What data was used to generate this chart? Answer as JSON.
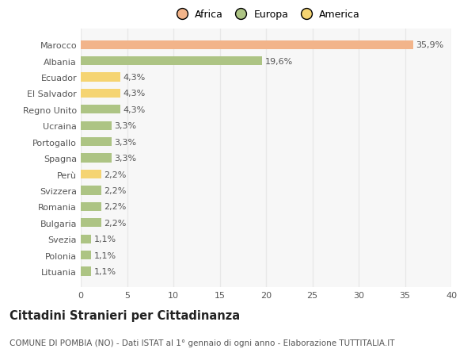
{
  "countries": [
    "Marocco",
    "Albania",
    "Ecuador",
    "El Salvador",
    "Regno Unito",
    "Ucraina",
    "Portogallo",
    "Spagna",
    "Perù",
    "Svizzera",
    "Romania",
    "Bulgaria",
    "Svezia",
    "Polonia",
    "Lituania"
  ],
  "values": [
    35.9,
    19.6,
    4.3,
    4.3,
    4.3,
    3.3,
    3.3,
    3.3,
    2.2,
    2.2,
    2.2,
    2.2,
    1.1,
    1.1,
    1.1
  ],
  "labels": [
    "35,9%",
    "19,6%",
    "4,3%",
    "4,3%",
    "4,3%",
    "3,3%",
    "3,3%",
    "3,3%",
    "2,2%",
    "2,2%",
    "2,2%",
    "2,2%",
    "1,1%",
    "1,1%",
    "1,1%"
  ],
  "colors": [
    "#f2b48a",
    "#adc484",
    "#f5d472",
    "#f5d472",
    "#adc484",
    "#adc484",
    "#adc484",
    "#adc484",
    "#f5d472",
    "#adc484",
    "#adc484",
    "#adc484",
    "#adc484",
    "#adc484",
    "#adc484"
  ],
  "legend_labels": [
    "Africa",
    "Europa",
    "America"
  ],
  "legend_colors": [
    "#f2b48a",
    "#adc484",
    "#f5d472"
  ],
  "title": "Cittadini Stranieri per Cittadinanza",
  "subtitle": "COMUNE DI POMBIA (NO) - Dati ISTAT al 1° gennaio di ogni anno - Elaborazione TUTTITALIA.IT",
  "xlim": [
    0,
    40
  ],
  "xticks": [
    0,
    5,
    10,
    15,
    20,
    25,
    30,
    35,
    40
  ],
  "bg_color": "#ffffff",
  "plot_bg_color": "#f7f7f7",
  "grid_color": "#e8e8e8",
  "bar_height": 0.55,
  "label_fontsize": 8,
  "tick_fontsize": 8,
  "title_fontsize": 10.5,
  "subtitle_fontsize": 7.5,
  "legend_fontsize": 9
}
